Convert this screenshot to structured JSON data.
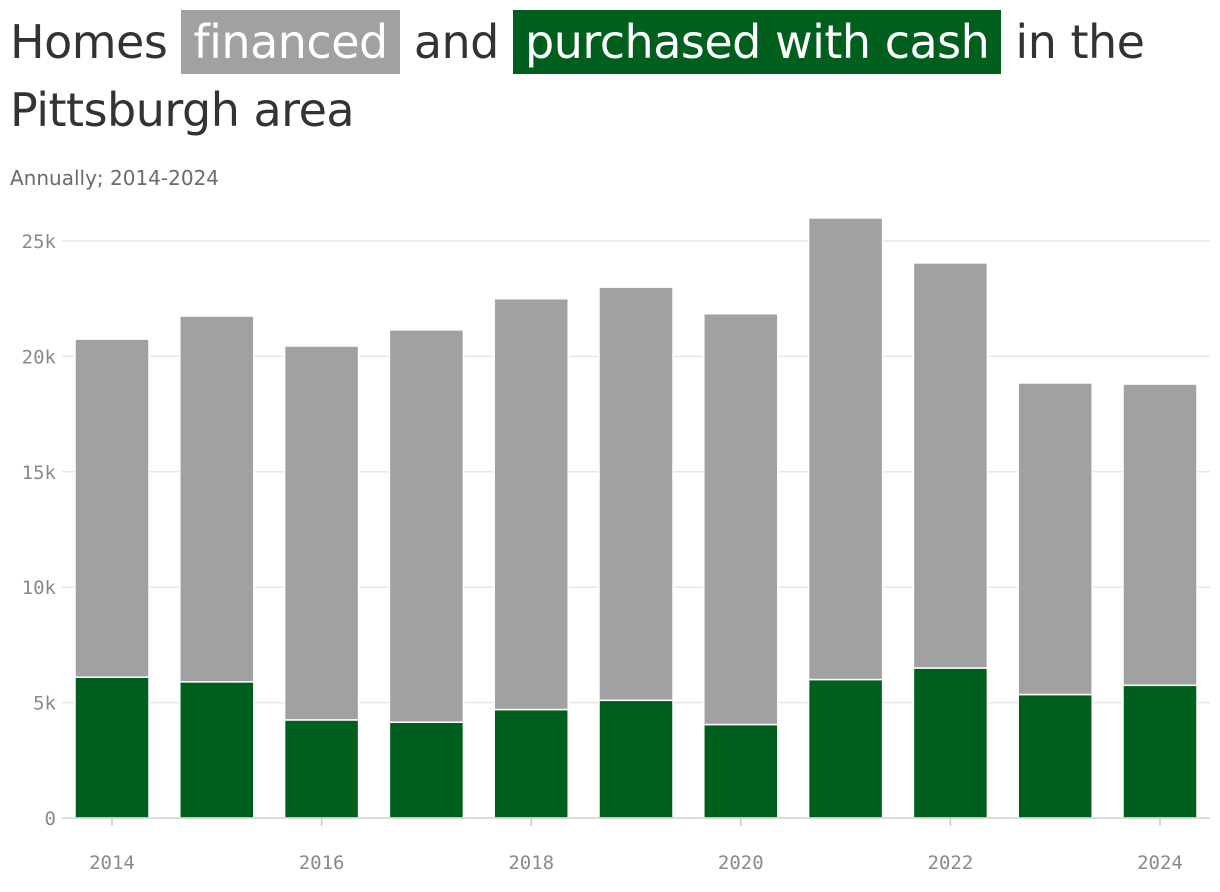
{
  "title": {
    "prefix": "Homes",
    "financed_label": "financed",
    "middle": "and",
    "cash_label": "purchased with cash",
    "suffix": "in the Pittsburgh area"
  },
  "subtitle": "Annually; 2014-2024",
  "colors": {
    "financed": "#a0a1a0",
    "cash": "#005f1c",
    "grid": "#e6e6e6",
    "title": "#333333",
    "subtitle": "#6b6b6b",
    "tick": "#8a8a8a"
  },
  "chart_data": {
    "type": "bar",
    "stacked": true,
    "categories": [
      "2014",
      "2015",
      "2016",
      "2017",
      "2018",
      "2019",
      "2020",
      "2021",
      "2022",
      "2023",
      "2024"
    ],
    "series": [
      {
        "name": "purchased with cash",
        "color": "#005f1c",
        "values": [
          6100,
          5900,
          4250,
          4150,
          4700,
          5100,
          4050,
          6000,
          6500,
          5350,
          5750
        ]
      },
      {
        "name": "financed",
        "color": "#a0a1a0",
        "values": [
          14650,
          15850,
          16200,
          17000,
          17800,
          17900,
          17800,
          20000,
          17550,
          13500,
          13050
        ]
      }
    ],
    "totals": [
      20750,
      21750,
      20450,
      21150,
      22500,
      23000,
      21850,
      26000,
      24050,
      18850,
      18800
    ],
    "x_tick_labels": [
      "2014",
      "2016",
      "2018",
      "2020",
      "2022",
      "2024"
    ],
    "y_ticks": [
      0,
      5000,
      10000,
      15000,
      20000,
      25000
    ],
    "y_tick_labels": [
      "0",
      "5k",
      "10k",
      "15k",
      "20k",
      "25k"
    ],
    "ylim": [
      0,
      26000
    ],
    "grid": true,
    "legend": "none",
    "xlabel": "",
    "ylabel": ""
  }
}
